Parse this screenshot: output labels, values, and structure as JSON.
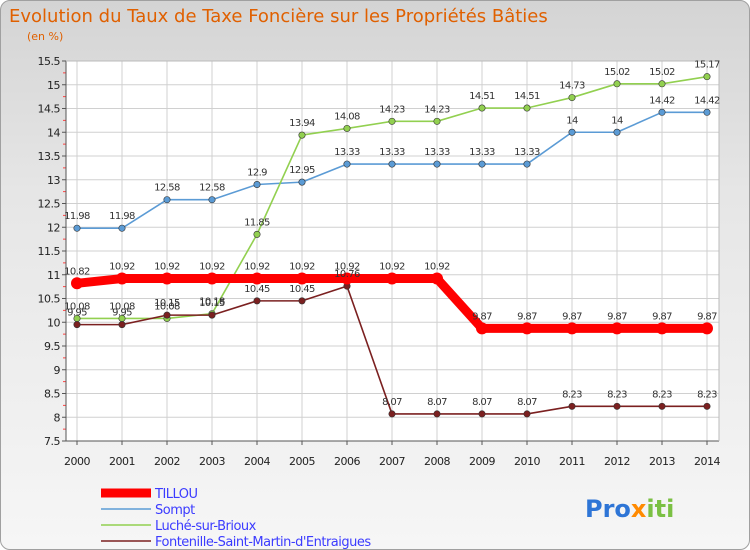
{
  "chart_data": {
    "type": "line",
    "title": "Evolution du Taux de Taxe Foncière sur les Propriétés Bâties",
    "subtitle": "(en %)",
    "x": [
      "2000",
      "2001",
      "2002",
      "2003",
      "2004",
      "2005",
      "2006",
      "2007",
      "2008",
      "2009",
      "2010",
      "2011",
      "2012",
      "2013",
      "2014"
    ],
    "ylim": [
      7.5,
      15.5
    ],
    "yticks": [
      "7.5",
      "8",
      "8.5",
      "9",
      "9.5",
      "10",
      "10.5",
      "11",
      "11.5",
      "12",
      "12.5",
      "13",
      "13.5",
      "14",
      "14.5",
      "15",
      "15.5"
    ],
    "grid": true,
    "legend_position": "bottom-left",
    "series": [
      {
        "name": "TILLOU",
        "color": "#ff0000",
        "values": [
          10.82,
          10.92,
          10.92,
          10.92,
          10.92,
          10.92,
          10.92,
          10.92,
          10.92,
          9.87,
          9.87,
          9.87,
          9.87,
          9.87,
          9.87
        ],
        "labels": [
          "10.82",
          "10.92",
          "10.92",
          "10.92",
          "10.92",
          "10.92",
          "10.92",
          "10.92",
          "10.92",
          "9.87",
          "9.87",
          "9.87",
          "9.87",
          "9.87",
          "9.87"
        ]
      },
      {
        "name": "Sompt",
        "color": "#5b9bd5",
        "values": [
          11.98,
          11.98,
          12.58,
          12.58,
          12.9,
          12.95,
          13.33,
          13.33,
          13.33,
          13.33,
          13.33,
          14,
          14,
          14.42,
          14.42
        ],
        "labels": [
          "11.98",
          "11.98",
          "12.58",
          "12.58",
          "12.9",
          "12.95",
          "13.33",
          "13.33",
          "13.33",
          "13.33",
          "13.33",
          "14",
          "14",
          "14.42",
          "14.42"
        ]
      },
      {
        "name": "Luché-sur-Brioux",
        "color": "#92d050",
        "values": [
          10.08,
          10.08,
          10.08,
          10.18,
          11.85,
          13.94,
          14.08,
          14.23,
          14.23,
          14.51,
          14.51,
          14.73,
          15.02,
          15.02,
          15.17
        ],
        "labels": [
          "10.08",
          "10.08",
          "10.08",
          "10.18",
          "11.85",
          "13.94",
          "14.08",
          "14.23",
          "14.23",
          "14.51",
          "14.51",
          "14.73",
          "15.02",
          "15.02",
          "15.17"
        ]
      },
      {
        "name": "Fontenille-Saint-Martin-d'Entraigues",
        "color": "#7b2020",
        "values": [
          9.95,
          9.95,
          10.15,
          10.15,
          10.45,
          10.45,
          10.76,
          8.07,
          8.07,
          8.07,
          8.07,
          8.23,
          8.23,
          8.23,
          8.23
        ],
        "labels": [
          "9.95",
          "9.95",
          "10.15",
          "10.15",
          "10.45",
          "10.45",
          "10.76",
          "8.07",
          "8.07",
          "8.07",
          "8.07",
          "8.23",
          "8.23",
          "8.23",
          "8.23"
        ]
      }
    ]
  },
  "logo": {
    "parts": [
      "Pro",
      "x",
      "iti"
    ],
    "colors": [
      "#2e75d6",
      "#ff8a00",
      "#7bc043"
    ]
  }
}
